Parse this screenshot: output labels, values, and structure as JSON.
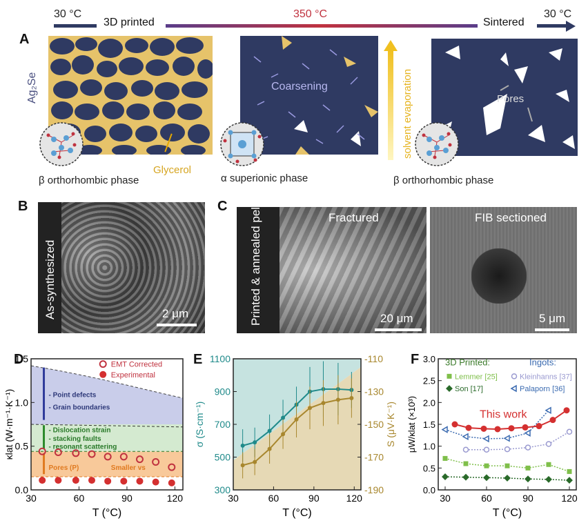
{
  "top": {
    "t_start": "30 °C",
    "t_mid": "350 °C",
    "t_end": "30 °C",
    "stage1": "3D printed",
    "stage2": "Sintered"
  },
  "panel_labels": {
    "A": "A",
    "B": "B",
    "C": "C",
    "D": "D",
    "E": "E",
    "F": "F"
  },
  "panelA": {
    "material": "Ag₂Se",
    "glycerol": "Glycerol",
    "coarsening": "Coarsening",
    "solvent": "solvent evaporation",
    "pores": "Pores",
    "phase1": "β  orthorhombic phase",
    "phase2": "α superionic phase",
    "phase3": "β  orthorhombic phase"
  },
  "panelB": {
    "label": "As-synthesized",
    "scale": "2 μm"
  },
  "panelC": {
    "label": "Printed & annealed pellet",
    "fractured": "Fractured",
    "fib": "FIB sectioned",
    "scale1": "20 μm",
    "scale2": "5 μm"
  },
  "colors": {
    "navy": "#2f3a62",
    "glycerol": "#e6c36a",
    "purple": "#5a3d8a",
    "red": "#c0323f",
    "teal": "#1f8a8a",
    "gold": "#a8872e",
    "green": "#3a8a2e",
    "blue": "#2e5fa8"
  },
  "chart_data": [
    {
      "type": "scatter",
      "panel": "D",
      "xlabel": "T (°C)",
      "ylabel": "κlat (W·m⁻¹·K⁻¹)",
      "xlim": [
        30,
        125
      ],
      "ylim": [
        0,
        1.5
      ],
      "xticks": [
        "30",
        "60",
        "90",
        "120"
      ],
      "yticks": [
        "0.0",
        "0.5",
        "1.0",
        "1.5"
      ],
      "legend": [
        "EMT Corrected",
        "Experimental"
      ],
      "annotations": [
        "- Point defects",
        "- Grain boundaries",
        "- Dislocation strain",
        "- stacking faults",
        "- resonant scattering",
        "Pores (P)",
        "Smaller vs"
      ],
      "series": [
        {
          "name": "EMT Corrected",
          "x": [
            37,
            47,
            58,
            68,
            78,
            88,
            98,
            108,
            118
          ],
          "values": [
            0.44,
            0.43,
            0.42,
            0.41,
            0.38,
            0.38,
            0.35,
            0.32,
            0.26
          ]
        },
        {
          "name": "Experimental",
          "x": [
            37,
            47,
            58,
            68,
            78,
            88,
            98,
            108,
            118
          ],
          "values": [
            0.11,
            0.11,
            0.11,
            0.11,
            0.1,
            0.1,
            0.1,
            0.09,
            0.08
          ]
        }
      ],
      "bands": [
        0.15,
        0.44,
        0.75,
        1.42
      ]
    },
    {
      "type": "line",
      "panel": "E",
      "xlabel": "T (°C)",
      "ylabel": "σ (S·cm⁻¹)",
      "ylabel2": "S (μV·K⁻¹)",
      "xlim": [
        30,
        125
      ],
      "ylim": [
        300,
        1100
      ],
      "ylim2": [
        -190,
        -110
      ],
      "xticks": [
        "30",
        "60",
        "90",
        "120"
      ],
      "yticks": [
        "300",
        "500",
        "700",
        "900",
        "1100"
      ],
      "yticks2": [
        "-190",
        "-170",
        "-150",
        "-130",
        "-110"
      ],
      "series": [
        {
          "name": "σ",
          "x": [
            37,
            46,
            57,
            67,
            77,
            87,
            97,
            108,
            118
          ],
          "values": [
            570,
            590,
            660,
            740,
            820,
            900,
            915,
            915,
            910
          ],
          "err": [
            100,
            90,
            100,
            110,
            110,
            150,
            170,
            160,
            110
          ]
        },
        {
          "name": "S",
          "x": [
            37,
            46,
            57,
            67,
            77,
            87,
            97,
            108,
            118
          ],
          "values": [
            -175,
            -173,
            -165,
            -156,
            -147,
            -140,
            -137,
            -135,
            -134
          ],
          "err": [
            8,
            8,
            9,
            9,
            11,
            13,
            14,
            15,
            12
          ]
        }
      ]
    },
    {
      "type": "scatter",
      "panel": "F",
      "xlabel": "T (°C)",
      "ylabel": "μW/κlat (×10³)",
      "xlim": [
        25,
        125
      ],
      "ylim": [
        0,
        3
      ],
      "xticks": [
        "30",
        "60",
        "90",
        "120"
      ],
      "yticks": [
        "0.0",
        "0.5",
        "1.0",
        "1.5",
        "2.0",
        "2.5",
        "3.0"
      ],
      "legend_titles": [
        "3D Printed:",
        "Ingots:"
      ],
      "annotation": "This work",
      "series": [
        {
          "name": "Lemmer [25]",
          "x": [
            30,
            45,
            60,
            75,
            90,
            105,
            120
          ],
          "values": [
            0.72,
            0.6,
            0.55,
            0.55,
            0.5,
            0.58,
            0.42
          ]
        },
        {
          "name": "Son [17]",
          "x": [
            30,
            45,
            60,
            75,
            90,
            105,
            120
          ],
          "values": [
            0.3,
            0.29,
            0.28,
            0.27,
            0.25,
            0.24,
            0.22
          ]
        },
        {
          "name": "Kleinhanns [37]",
          "x": [
            45,
            60,
            75,
            90,
            105,
            120
          ],
          "values": [
            0.92,
            0.92,
            0.93,
            0.97,
            1.05,
            1.33
          ]
        },
        {
          "name": "Palaporn [36]",
          "x": [
            30,
            45,
            60,
            75,
            90,
            105
          ],
          "values": [
            1.38,
            1.22,
            1.17,
            1.18,
            1.3,
            1.82
          ]
        },
        {
          "name": "This work",
          "x": [
            37,
            47,
            58,
            68,
            78,
            88,
            98,
            108,
            118
          ],
          "values": [
            1.5,
            1.42,
            1.4,
            1.39,
            1.41,
            1.43,
            1.46,
            1.6,
            1.82
          ]
        }
      ]
    }
  ]
}
